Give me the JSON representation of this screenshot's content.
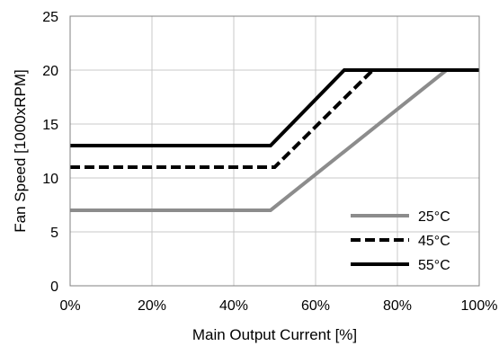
{
  "chart_data": {
    "type": "line",
    "title": "",
    "xlabel": "Main Output Current [%]",
    "ylabel": "Fan Speed [1000xRPM]",
    "xlim": [
      0,
      100
    ],
    "ylim": [
      0,
      25
    ],
    "x_ticks": [
      0,
      20,
      40,
      60,
      80,
      100
    ],
    "x_tick_labels": [
      "0%",
      "20%",
      "40%",
      "60%",
      "80%",
      "100%"
    ],
    "y_ticks": [
      0,
      5,
      10,
      15,
      20,
      25
    ],
    "y_tick_labels": [
      "0",
      "5",
      "10",
      "15",
      "20",
      "25"
    ],
    "grid": true,
    "legend_position": "bottom-right",
    "series": [
      {
        "name": "25°C",
        "color": "#8c8c8c",
        "dash": "solid",
        "points": [
          [
            0,
            7
          ],
          [
            49,
            7
          ],
          [
            92,
            20
          ],
          [
            100,
            20
          ]
        ]
      },
      {
        "name": "45°C",
        "color": "#000000",
        "dash": "dashed",
        "points": [
          [
            0,
            11
          ],
          [
            50,
            11
          ],
          [
            74,
            20
          ],
          [
            100,
            20
          ]
        ]
      },
      {
        "name": "55°C",
        "color": "#000000",
        "dash": "solid",
        "points": [
          [
            0,
            13
          ],
          [
            49,
            13
          ],
          [
            67,
            20
          ],
          [
            100,
            20
          ]
        ]
      }
    ]
  }
}
